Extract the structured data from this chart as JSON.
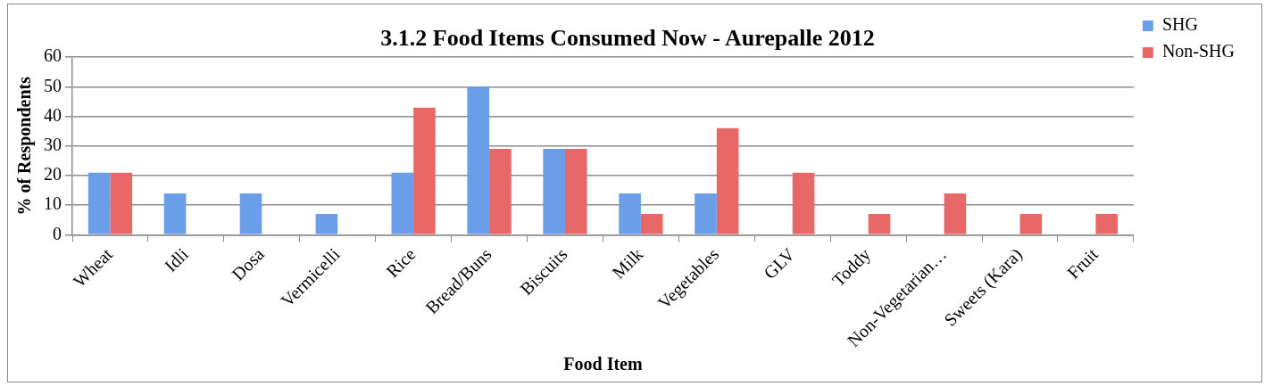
{
  "chart_data": {
    "type": "bar",
    "title": "3.1.2 Food Items Consumed Now - Aurepalle 2012",
    "xlabel": "Food Item",
    "ylabel": "% of Respondents",
    "categories": [
      "Wheat",
      "Idli",
      "Dosa",
      "Vermicelli",
      "Rice",
      "Bread/Buns",
      "Biscuits",
      "Milk",
      "Vegetables",
      "GLV",
      "Toddy",
      "Non-Vegetarian…",
      "Sweets (Kara)",
      "Fruit"
    ],
    "series": [
      {
        "name": "SHG",
        "color": "#6a9ee8",
        "values": [
          21,
          14,
          14,
          7,
          21,
          50,
          29,
          14,
          14,
          0,
          0,
          0,
          0,
          0
        ]
      },
      {
        "name": "Non-SHG",
        "color": "#e86868",
        "values": [
          21,
          0,
          0,
          0,
          43,
          29,
          29,
          7,
          36,
          21,
          7,
          14,
          7,
          7
        ]
      }
    ],
    "ylim": [
      0,
      60
    ],
    "yticks": [
      0,
      10,
      20,
      30,
      40,
      50,
      60
    ],
    "grid": "y",
    "legend": "top right"
  }
}
